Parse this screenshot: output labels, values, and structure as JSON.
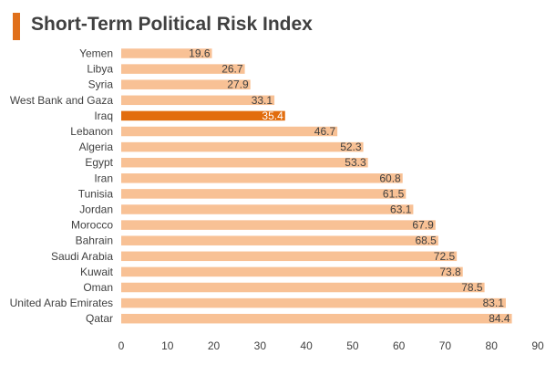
{
  "title": "Short-Term Political Risk Index",
  "colors": {
    "accent": "#e0701b",
    "bar": "#f8c195",
    "highlight": "#e26d0e",
    "text": "#404040",
    "highlight_text": "#ffffff"
  },
  "chart_data": {
    "type": "bar",
    "orientation": "horizontal",
    "title": "Short-Term Political Risk Index",
    "categories": [
      "Yemen",
      "Libya",
      "Syria",
      "West Bank and Gaza",
      "Iraq",
      "Lebanon",
      "Algeria",
      "Egypt",
      "Iran",
      "Tunisia",
      "Jordan",
      "Morocco",
      "Bahrain",
      "Saudi Arabia",
      "Kuwait",
      "Oman",
      "United Arab Emirates",
      "Qatar"
    ],
    "values": [
      19.6,
      26.7,
      27.9,
      33.1,
      35.4,
      46.7,
      52.3,
      53.3,
      60.8,
      61.5,
      63.1,
      67.9,
      68.5,
      72.5,
      73.8,
      78.5,
      83.1,
      84.4
    ],
    "value_labels": [
      "19.6",
      "26.7",
      "27.9",
      "33.1",
      "35.4",
      "46.7",
      "52.3",
      "53.3",
      "60.8",
      "61.5",
      "63.1",
      "67.9",
      "68.5",
      "72.5",
      "73.8",
      "78.5",
      "83.1",
      "84.4"
    ],
    "highlighted_category": "Iraq",
    "xlim": [
      0,
      90
    ],
    "xticks": [
      0,
      10,
      20,
      30,
      40,
      50,
      60,
      70,
      80,
      90
    ],
    "xtick_labels": [
      "0",
      "10",
      "20",
      "30",
      "40",
      "50",
      "60",
      "70",
      "80",
      "90"
    ],
    "xlabel": "",
    "ylabel": "",
    "grid": false,
    "legend": "none"
  }
}
